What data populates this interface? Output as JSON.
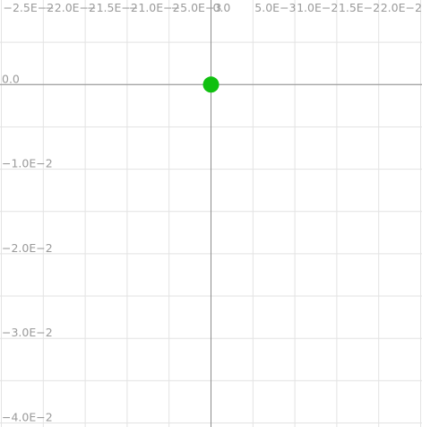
{
  "chart_data": {
    "type": "scatter",
    "title": "",
    "xlabel": "",
    "ylabel": "",
    "xlim": [
      -0.025,
      0.025
    ],
    "ylim": [
      -0.04,
      0.005
    ],
    "grid": true,
    "x_ticks": [
      -0.025,
      -0.02,
      -0.015,
      -0.01,
      -0.005,
      0,
      0.005,
      0.01,
      0.015,
      0.02
    ],
    "x_tick_labels": [
      "-2.5E-2",
      "-2.0E-2",
      "-1.5E-2",
      "-1.0E-2",
      "-5.0E-3",
      "0.0",
      "5.0E-3",
      "1.0E-2",
      "1.5E-2",
      "2.0E-2"
    ],
    "y_ticks": [
      0,
      -0.01,
      -0.02,
      -0.03,
      -0.04
    ],
    "y_tick_labels": [
      "0.0",
      "-1.0E-2",
      "-2.0E-2",
      "-3.0E-2",
      "-4.0E-2"
    ],
    "series": [
      {
        "color": "#10c010",
        "points": [
          {
            "x": 0,
            "y": 0
          }
        ]
      }
    ],
    "colors": {
      "grid": "#e3e3e3",
      "axis": "#8c8c8c",
      "tick_text": "#9a9a9a",
      "background": "#ffffff"
    }
  }
}
